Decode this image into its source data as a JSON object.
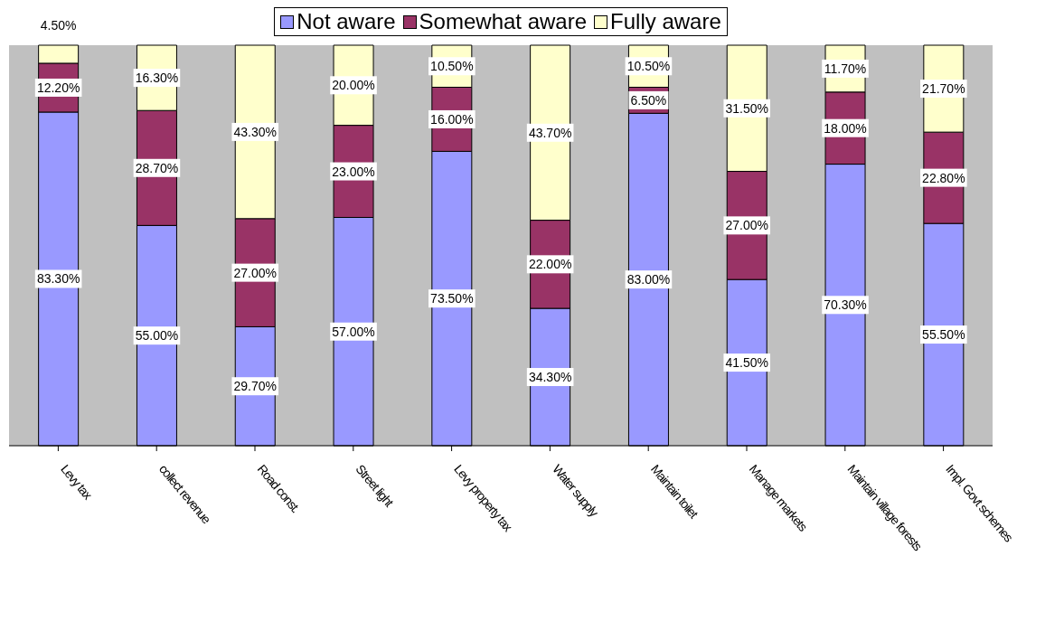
{
  "chart_data": {
    "type": "bar",
    "stacked": true,
    "legend": "top",
    "categories": [
      "Levy tax",
      "collect revenue",
      "Road const.",
      "Street light",
      "Levy property tax",
      "Water supply",
      "Maintain toilet",
      "Manage markets",
      "Maintain village forests",
      "Impl. Govt schemes"
    ],
    "series": [
      {
        "name": "Not aware",
        "color": "#9999ff",
        "values": [
          83.3,
          55.0,
          29.7,
          57.0,
          73.5,
          34.3,
          83.0,
          41.5,
          70.3,
          55.5
        ],
        "value_labels": [
          "83.30%",
          "55.00%",
          "29.70%",
          "57.00%",
          "73.50%",
          "34.30%",
          "83.00%",
          "41.50%",
          "70.30%",
          "55.50%"
        ]
      },
      {
        "name": "Somewhat aware",
        "color": "#993366",
        "values": [
          12.2,
          28.7,
          27.0,
          23.0,
          16.0,
          22.0,
          6.5,
          27.0,
          18.0,
          22.8
        ],
        "value_labels": [
          "12.20%",
          "28.70%",
          "27.00%",
          "23.00%",
          "16.00%",
          "22.00%",
          "6.50%",
          "27.00%",
          "18.00%",
          "22.80%"
        ]
      },
      {
        "name": "Fully aware",
        "color": "#ffffcc",
        "values": [
          4.5,
          16.3,
          43.3,
          20.0,
          10.5,
          43.7,
          10.5,
          31.5,
          11.7,
          21.7
        ],
        "value_labels": [
          "4.50%",
          "16.30%",
          "43.30%",
          "20.00%",
          "10.50%",
          "43.70%",
          "10.50%",
          "31.50%",
          "11.70%",
          "21.70%"
        ]
      }
    ]
  }
}
